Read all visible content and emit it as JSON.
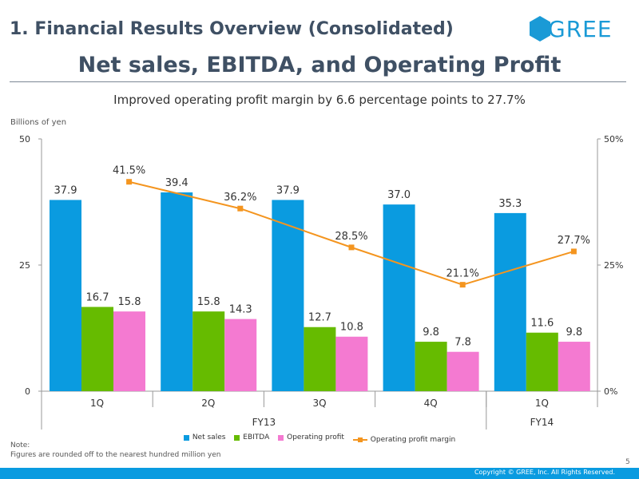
{
  "header": {
    "section_title": "1. Financial Results Overview (Consolidated)",
    "logo_text": "GREE",
    "main_title": "Net sales, EBITDA, and Operating Profit",
    "subtitle": "Improved operating profit margin by 6.6 percentage points to 27.7%",
    "units": "Billions of yen"
  },
  "colors": {
    "net_sales": "#0a9be0",
    "ebitda": "#66bb00",
    "operating_profit": "#f47ad1",
    "margin_line": "#f4951f",
    "brand": "#1a9ad6"
  },
  "chart_data": {
    "type": "bar",
    "categories": [
      "1Q",
      "2Q",
      "3Q",
      "4Q",
      "1Q"
    ],
    "groups": [
      {
        "label": "FY13",
        "span": [
          0,
          3
        ]
      },
      {
        "label": "FY14",
        "span": [
          4,
          4
        ]
      }
    ],
    "series": [
      {
        "name": "Net sales",
        "values": [
          37.9,
          39.4,
          37.9,
          37.0,
          35.3
        ],
        "labels": [
          "37.9",
          "39.4",
          "37.9",
          "37.0",
          "35.3"
        ]
      },
      {
        "name": "EBITDA",
        "values": [
          16.7,
          15.8,
          12.7,
          9.8,
          11.6
        ],
        "labels": [
          "16.7",
          "15.8",
          "12.7",
          "9.8",
          "11.6"
        ]
      },
      {
        "name": "Operating profit",
        "values": [
          15.8,
          14.3,
          10.8,
          7.8,
          9.8
        ],
        "labels": [
          "15.8",
          "14.3",
          "10.8",
          "7.8",
          "9.8"
        ]
      }
    ],
    "line_series": {
      "name": "Operating profit margin",
      "axis": "secondary",
      "values": [
        41.5,
        36.2,
        28.5,
        21.1,
        27.7
      ],
      "labels": [
        "41.5%",
        "36.2%",
        "28.5%",
        "21.1%",
        "27.7%"
      ]
    },
    "y_axis": {
      "label": "Billions of yen",
      "ylim": [
        0,
        50
      ],
      "ticks": [
        "0",
        "25",
        "50"
      ]
    },
    "y2_axis": {
      "ylim": [
        0,
        50
      ],
      "ticks": [
        "0%",
        "25%",
        "50%"
      ]
    }
  },
  "legend": [
    "Net sales",
    "EBITDA",
    "Operating profit",
    "Operating profit margin"
  ],
  "note": {
    "title": "Note:",
    "text": "Figures are rounded off to the nearest hundred million yen"
  },
  "footer": {
    "page_number": "5",
    "copyright": "Copyright © GREE, Inc. All Rights Reserved."
  }
}
